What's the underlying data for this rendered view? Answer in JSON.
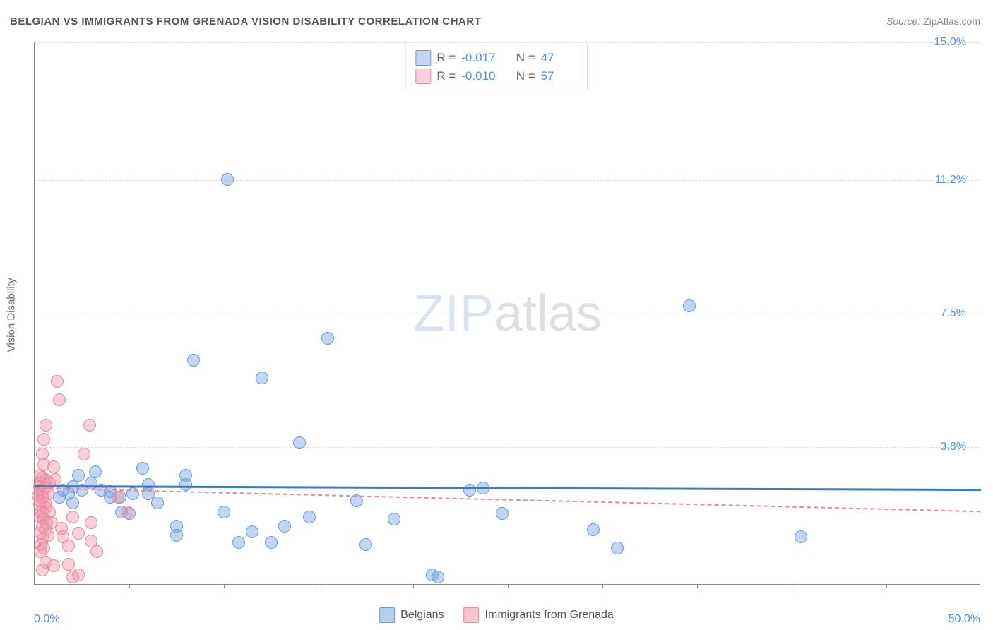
{
  "title": "BELGIAN VS IMMIGRANTS FROM GRENADA VISION DISABILITY CORRELATION CHART",
  "source_label": "Source:",
  "source_value": "ZipAtlas.com",
  "ylabel": "Vision Disability",
  "watermark_a": "ZIP",
  "watermark_b": "atlas",
  "chart": {
    "type": "scatter",
    "xlim": [
      0,
      50
    ],
    "ylim": [
      0,
      15
    ],
    "x_origin_label": "0.0%",
    "x_max_label": "50.0%",
    "y_ticks": [
      3.8,
      7.5,
      11.2,
      15.0
    ],
    "y_tick_labels": [
      "3.8%",
      "7.5%",
      "11.2%",
      "15.0%"
    ],
    "x_tick_positions": [
      5,
      10,
      15,
      20,
      25,
      30,
      35,
      40,
      45
    ],
    "grid_color": "#dddddd",
    "axis_color": "#888888",
    "background_color": "#ffffff",
    "marker_radius": 9,
    "series": [
      {
        "name": "Belgians",
        "fill": "rgba(120,165,225,0.45)",
        "stroke": "#6a9bd8",
        "r_label": "R =",
        "r_value": "-0.017",
        "n_label": "N =",
        "n_value": "47",
        "trend": {
          "y_start": 2.75,
          "y_end": 2.65,
          "style": "solid",
          "color": "#3b78c9"
        },
        "points": [
          [
            10.2,
            11.2
          ],
          [
            8.4,
            6.2
          ],
          [
            12.0,
            5.7
          ],
          [
            15.5,
            6.8
          ],
          [
            34.6,
            7.7
          ],
          [
            40.5,
            1.3
          ],
          [
            30.8,
            1.0
          ],
          [
            23.7,
            2.65
          ],
          [
            23.0,
            2.6
          ],
          [
            21.0,
            0.25
          ],
          [
            21.3,
            0.2
          ],
          [
            17.5,
            1.1
          ],
          [
            17.0,
            2.3
          ],
          [
            14.0,
            3.9
          ],
          [
            13.2,
            1.6
          ],
          [
            12.5,
            1.15
          ],
          [
            11.5,
            1.45
          ],
          [
            10.0,
            2.0
          ],
          [
            10.8,
            1.15
          ],
          [
            8.0,
            3.0
          ],
          [
            8.0,
            2.75
          ],
          [
            7.5,
            1.6
          ],
          [
            7.5,
            1.35
          ],
          [
            6.5,
            2.25
          ],
          [
            6.0,
            2.75
          ],
          [
            6.0,
            2.5
          ],
          [
            5.7,
            3.2
          ],
          [
            5.2,
            2.5
          ],
          [
            5.0,
            1.95
          ],
          [
            4.5,
            2.4
          ],
          [
            4.0,
            2.55
          ],
          [
            4.0,
            2.4
          ],
          [
            4.6,
            2.0
          ],
          [
            3.5,
            2.6
          ],
          [
            3.0,
            2.8
          ],
          [
            3.2,
            3.1
          ],
          [
            2.5,
            2.6
          ],
          [
            2.3,
            3.0
          ],
          [
            2.0,
            2.7
          ],
          [
            1.8,
            2.5
          ],
          [
            2.0,
            2.25
          ],
          [
            1.5,
            2.6
          ],
          [
            1.3,
            2.4
          ],
          [
            24.7,
            1.95
          ],
          [
            14.5,
            1.85
          ],
          [
            19.0,
            1.8
          ],
          [
            29.5,
            1.5
          ]
        ]
      },
      {
        "name": "Immigrants from Grenada",
        "fill": "rgba(240,150,170,0.45)",
        "stroke": "#e38aa0",
        "r_label": "R =",
        "r_value": "-0.010",
        "n_label": "N =",
        "n_value": "57",
        "trend": {
          "y_start": 2.7,
          "y_end": 2.05,
          "style": "dashed",
          "color": "#e38aa0"
        },
        "points": [
          [
            1.2,
            5.6
          ],
          [
            1.3,
            5.1
          ],
          [
            0.6,
            4.4
          ],
          [
            2.9,
            4.4
          ],
          [
            0.5,
            4.0
          ],
          [
            0.4,
            3.6
          ],
          [
            2.6,
            3.6
          ],
          [
            0.5,
            3.3
          ],
          [
            1.0,
            3.25
          ],
          [
            0.3,
            3.0
          ],
          [
            0.4,
            2.95
          ],
          [
            0.6,
            2.9
          ],
          [
            0.35,
            2.8
          ],
          [
            0.8,
            2.8
          ],
          [
            0.25,
            2.7
          ],
          [
            0.55,
            2.65
          ],
          [
            0.3,
            2.6
          ],
          [
            0.45,
            2.55
          ],
          [
            0.7,
            2.5
          ],
          [
            0.2,
            2.45
          ],
          [
            0.4,
            2.4
          ],
          [
            0.3,
            2.3
          ],
          [
            0.55,
            2.25
          ],
          [
            0.25,
            2.2
          ],
          [
            0.6,
            2.1
          ],
          [
            0.35,
            2.0
          ],
          [
            0.8,
            2.0
          ],
          [
            0.45,
            1.95
          ],
          [
            0.3,
            1.85
          ],
          [
            2.0,
            1.85
          ],
          [
            0.5,
            1.8
          ],
          [
            0.65,
            1.7
          ],
          [
            0.9,
            1.7
          ],
          [
            3.0,
            1.7
          ],
          [
            0.4,
            1.6
          ],
          [
            1.4,
            1.55
          ],
          [
            0.55,
            1.5
          ],
          [
            0.3,
            1.4
          ],
          [
            2.3,
            1.4
          ],
          [
            0.7,
            1.35
          ],
          [
            0.45,
            1.25
          ],
          [
            3.0,
            1.2
          ],
          [
            0.35,
            1.1
          ],
          [
            1.8,
            1.05
          ],
          [
            0.5,
            1.0
          ],
          [
            0.3,
            0.9
          ],
          [
            3.3,
            0.9
          ],
          [
            1.8,
            0.55
          ],
          [
            2.3,
            0.25
          ],
          [
            1.0,
            0.5
          ],
          [
            2.0,
            0.2
          ],
          [
            0.6,
            0.6
          ],
          [
            0.4,
            0.4
          ],
          [
            1.5,
            1.3
          ],
          [
            4.4,
            2.4
          ],
          [
            4.9,
            2.0
          ],
          [
            1.1,
            2.9
          ]
        ]
      }
    ]
  },
  "legend_bottom": {
    "items": [
      {
        "label": "Belgians",
        "fill": "rgba(120,165,225,0.55)",
        "stroke": "#6a9bd8"
      },
      {
        "label": "Immigrants from Grenada",
        "fill": "rgba(240,150,170,0.55)",
        "stroke": "#e38aa0"
      }
    ]
  }
}
